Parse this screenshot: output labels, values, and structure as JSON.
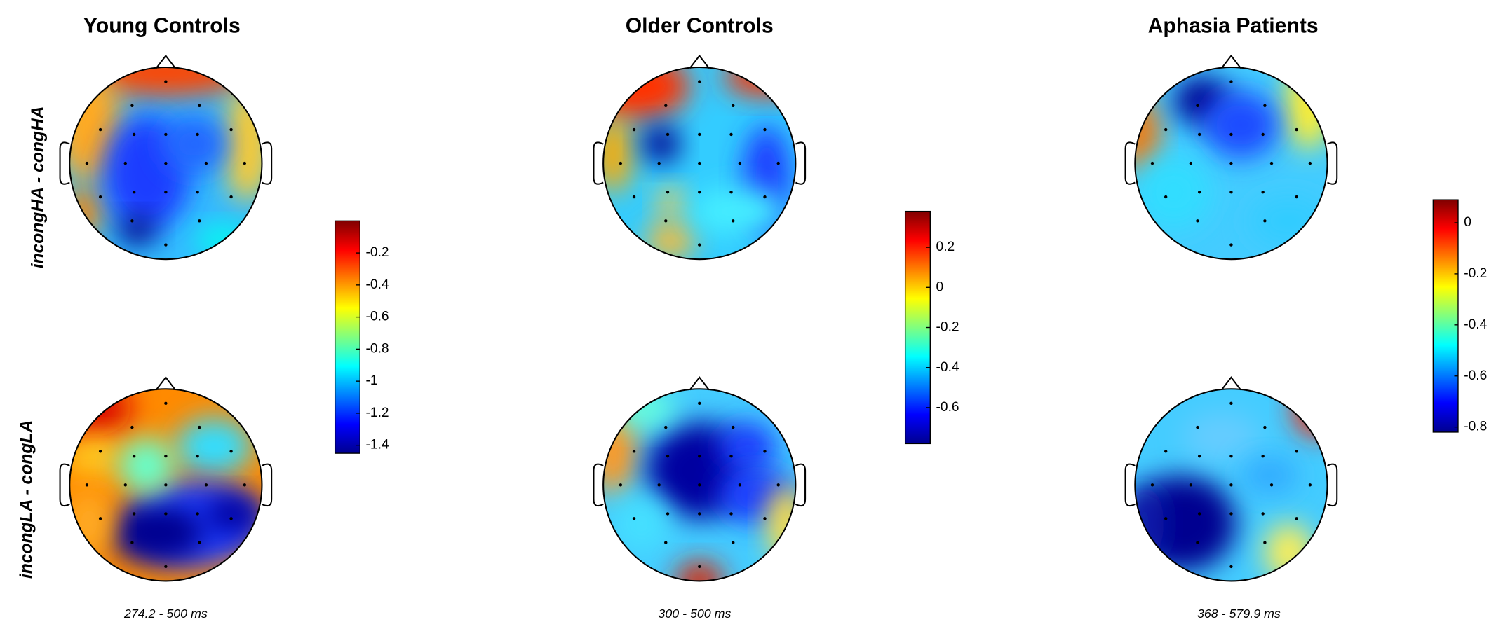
{
  "columns": [
    {
      "title": "Young Controls",
      "time_window": "274.2 - 500 ms",
      "colorbar": {
        "lim": [
          -1.45,
          0
        ],
        "ticks": [
          -0.2,
          -0.4,
          -0.6,
          -0.8,
          -1,
          -1.2,
          -1.4
        ]
      }
    },
    {
      "title": "Older Controls",
      "time_window": "300 - 500 ms",
      "colorbar": {
        "lim": [
          -0.78,
          0.38
        ],
        "ticks": [
          0.2,
          0,
          -0.2,
          -0.4,
          -0.6
        ]
      }
    },
    {
      "title": "Aphasia Patients",
      "time_window": "368 - 579.9 ms",
      "colorbar": {
        "lim": [
          -0.82,
          0.09
        ],
        "ticks": [
          0,
          -0.2,
          -0.4,
          -0.6,
          -0.8
        ]
      }
    }
  ],
  "rows": [
    "incongHA - congHA",
    "incongLA - congLA"
  ]
}
